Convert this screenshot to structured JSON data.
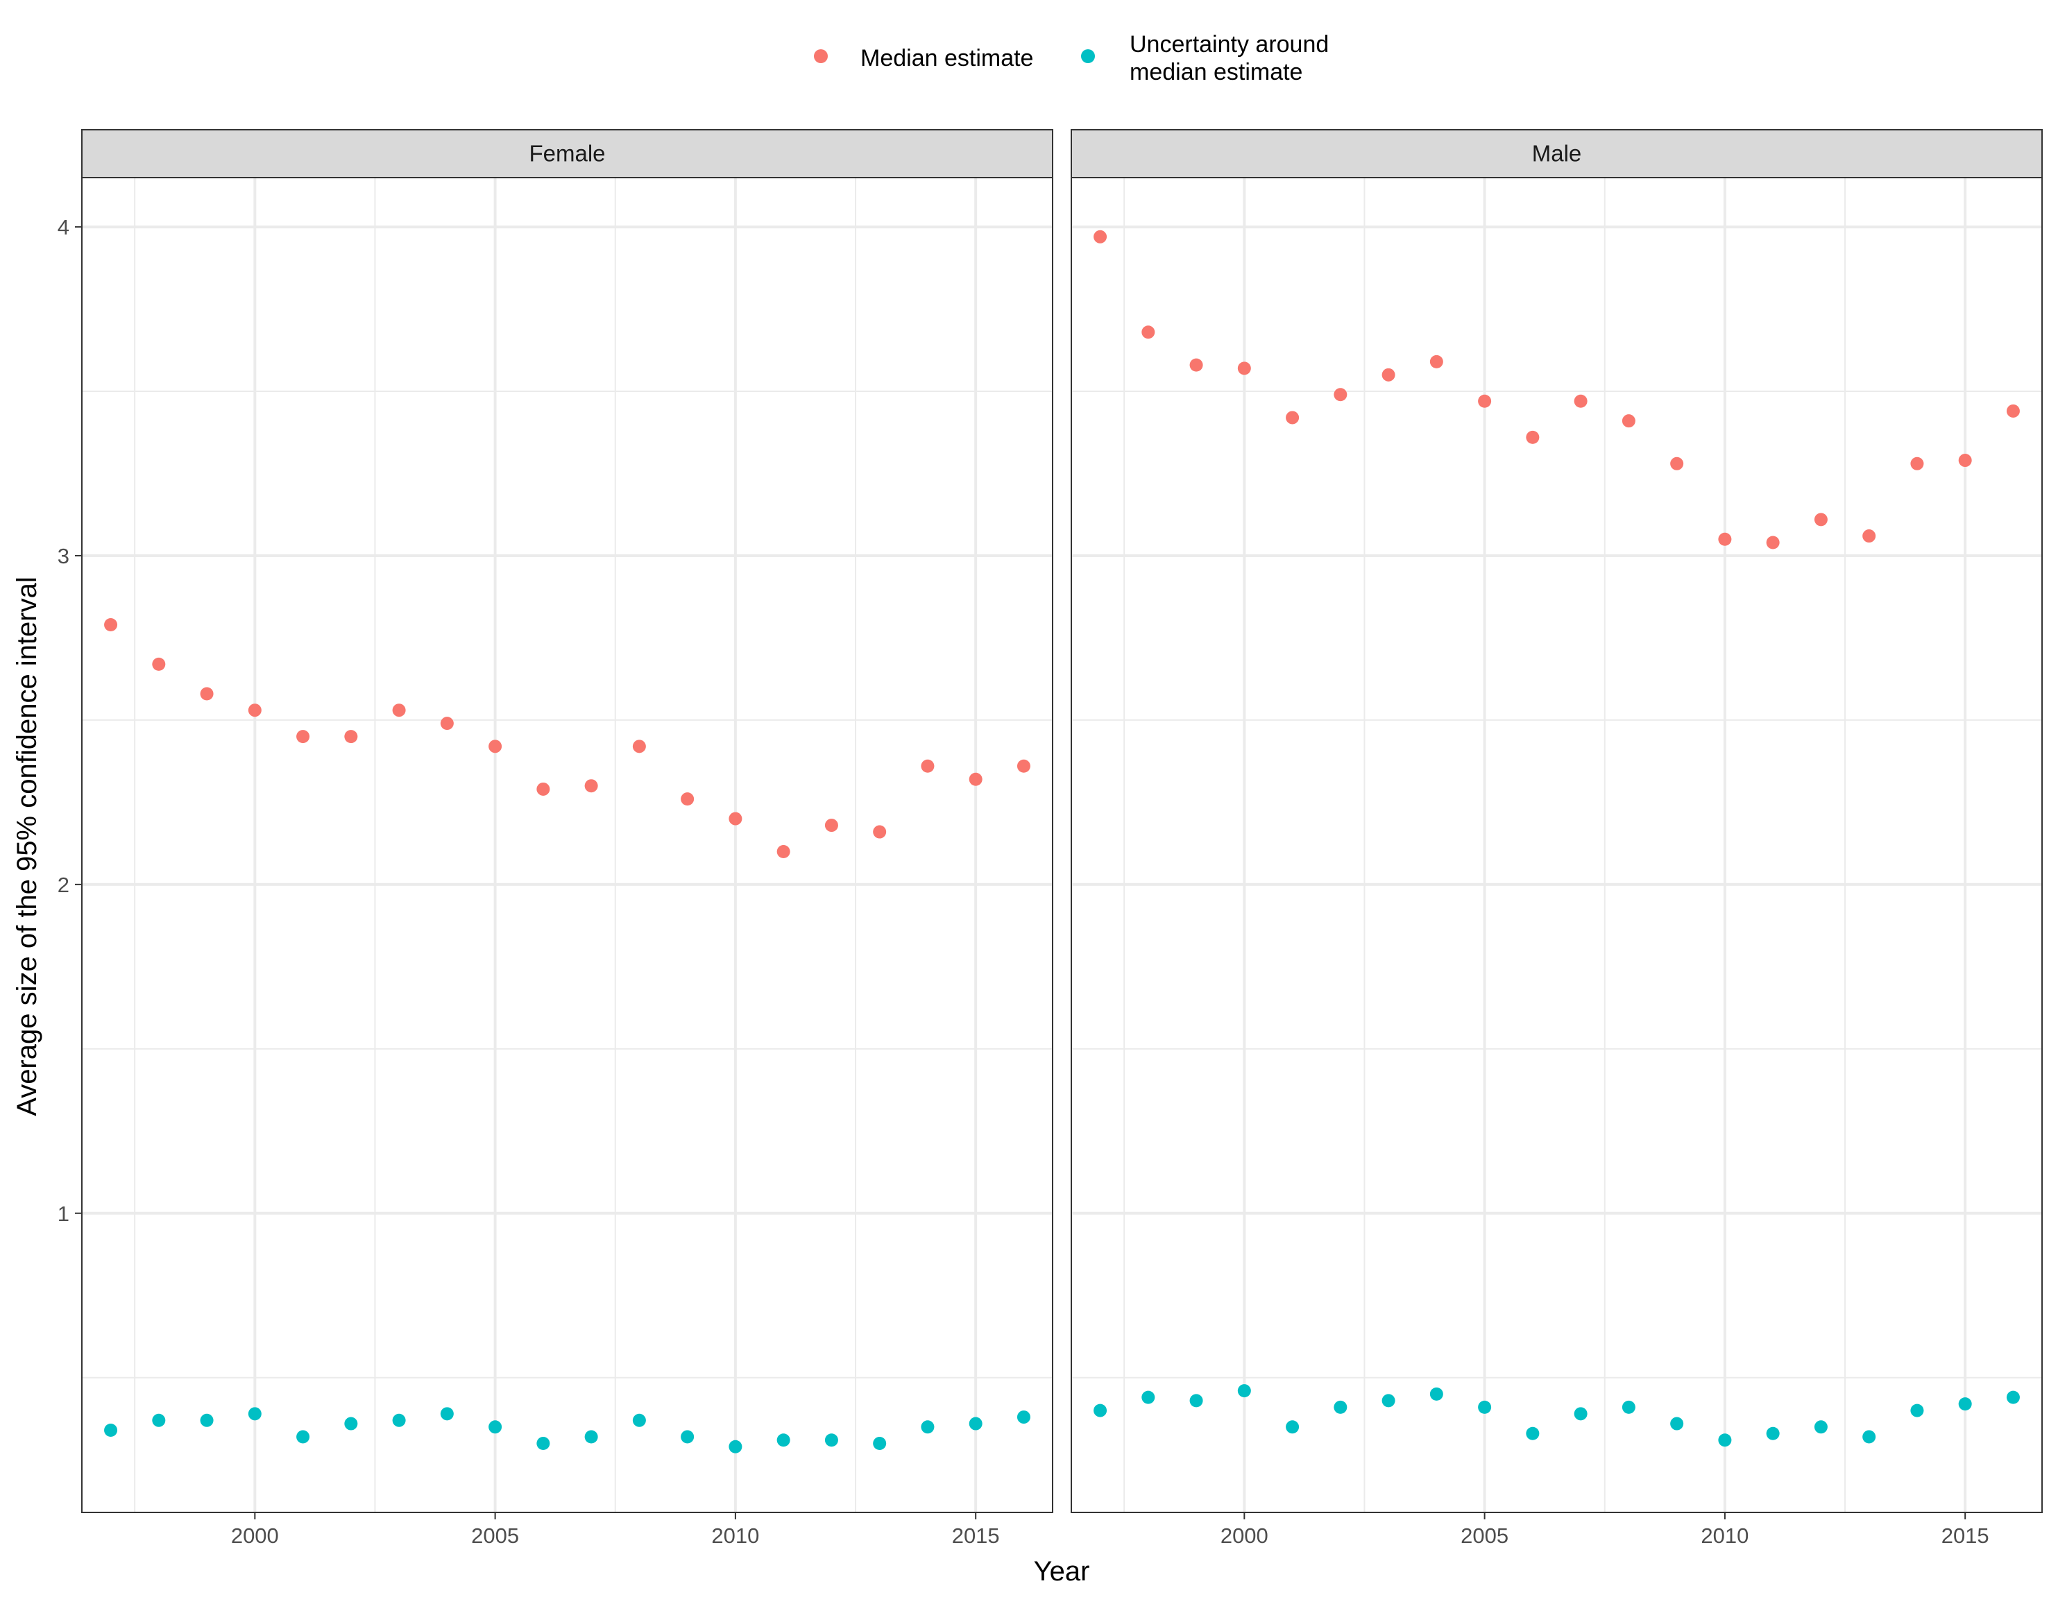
{
  "chart_data": {
    "type": "scatter",
    "facets": [
      "Female",
      "Male"
    ],
    "xlabel": "Year",
    "ylabel": "Average size of the 95% confidence interval",
    "x_ticks": [
      2000,
      2005,
      2010,
      2015
    ],
    "y_ticks": [
      1,
      2,
      3,
      4
    ],
    "xlim": [
      1996.4,
      2016.6
    ],
    "ylim": [
      0.09,
      4.15
    ],
    "grid": true,
    "legend_position": "top",
    "legend": [
      {
        "key": "median",
        "lines": [
          "Median estimate"
        ],
        "color": "#F8766D"
      },
      {
        "key": "uncertainty",
        "lines": [
          "Uncertainty around",
          "median estimate"
        ],
        "color": "#00BFC4"
      }
    ],
    "x": [
      1997,
      1998,
      1999,
      2000,
      2001,
      2002,
      2003,
      2004,
      2005,
      2006,
      2007,
      2008,
      2009,
      2010,
      2011,
      2012,
      2013,
      2014,
      2015,
      2016
    ],
    "series": {
      "Female": {
        "median": [
          2.79,
          2.67,
          2.58,
          2.53,
          2.45,
          2.45,
          2.53,
          2.49,
          2.42,
          2.29,
          2.3,
          2.42,
          2.26,
          2.2,
          2.1,
          2.18,
          2.16,
          2.36,
          2.32,
          2.36
        ],
        "uncertainty": [
          0.34,
          0.37,
          0.37,
          0.39,
          0.32,
          0.36,
          0.37,
          0.39,
          0.35,
          0.3,
          0.32,
          0.37,
          0.32,
          0.29,
          0.31,
          0.31,
          0.3,
          0.35,
          0.36,
          0.38
        ]
      },
      "Male": {
        "median": [
          3.97,
          3.68,
          3.58,
          3.57,
          3.42,
          3.49,
          3.55,
          3.59,
          3.47,
          3.36,
          3.47,
          3.41,
          3.28,
          3.05,
          3.04,
          3.11,
          3.06,
          3.28,
          3.29,
          3.44
        ],
        "uncertainty": [
          0.4,
          0.44,
          0.43,
          0.46,
          0.35,
          0.41,
          0.43,
          0.45,
          0.41,
          0.33,
          0.39,
          0.41,
          0.36,
          0.31,
          0.33,
          0.35,
          0.32,
          0.4,
          0.42,
          0.44
        ]
      }
    }
  }
}
